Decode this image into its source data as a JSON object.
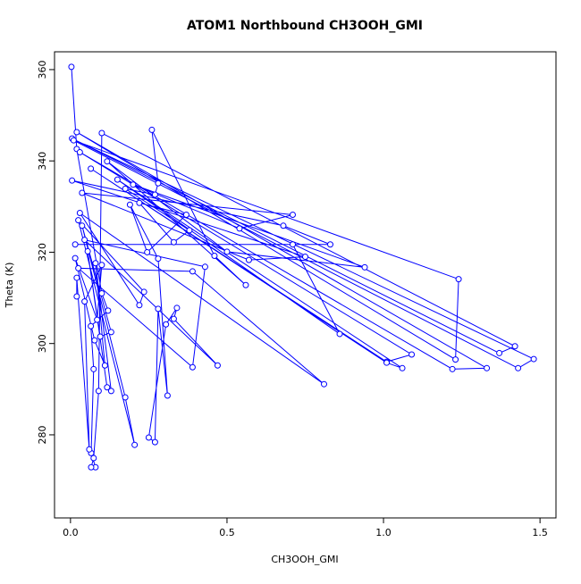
{
  "chart_data": {
    "type": "line-points",
    "title": "ATOM1 Northbound CH3OOH_GMI",
    "xlabel": "CH3OOH_GMI",
    "ylabel": "Theta (K)",
    "color": "#0000ff",
    "x": [
      0.003,
      0.02,
      0.1,
      0.12,
      0.065,
      0.074,
      0.066,
      0.08,
      0.066,
      0.074,
      0.09,
      0.1,
      1.42,
      1.37,
      0.005,
      1.48,
      1.43,
      0.01,
      1.24,
      1.23,
      0.02,
      1.33,
      1.22,
      0.03,
      1.09,
      1.01,
      0.065,
      1.01,
      1.06,
      0.15,
      0.86,
      0.71,
      0.015,
      0.83,
      0.68,
      0.005,
      0.75,
      0.57,
      0.037,
      0.71,
      0.54,
      0.2,
      0.94,
      0.5,
      0.117,
      0.56,
      0.46,
      0.26,
      0.28,
      0.27,
      0.175,
      0.38,
      0.33,
      0.22,
      0.37,
      0.245,
      0.19,
      0.28,
      0.31,
      0.28,
      0.27,
      0.25,
      0.305,
      0.34,
      0.33,
      0.47,
      0.045,
      0.43,
      0.39,
      0.025,
      0.39,
      0.81,
      0.03,
      0.22,
      0.235,
      0.025,
      0.205,
      0.175,
      0.037,
      0.13,
      0.095,
      0.055,
      0.117,
      0.13,
      0.08,
      0.11,
      0.077,
      0.015,
      0.085,
      0.1,
      0.045,
      0.06,
      0.02,
      0.02
    ],
    "values": [
      360.6,
      342.6,
      311,
      307.2,
      303.8,
      294.4,
      276,
      272.9,
      272.9,
      274.9,
      289.6,
      346.1,
      299.4,
      297.9,
      344.9,
      296.6,
      294.6,
      344.5,
      314.1,
      296.5,
      346.3,
      294.6,
      294.4,
      341.9,
      297.6,
      296,
      338.3,
      295.8,
      294.6,
      335.9,
      302.1,
      321.7,
      321.7,
      321.7,
      325.8,
      335.7,
      319,
      318.3,
      333,
      328.2,
      325.2,
      334.8,
      316.7,
      320.1,
      339.9,
      312.8,
      319.2,
      346.8,
      335.1,
      332.6,
      333.9,
      324.8,
      322.2,
      330.8,
      328.2,
      320,
      330.4,
      318.6,
      288.6,
      307.6,
      278.4,
      279.4,
      304.2,
      307.8,
      305.4,
      295.2,
      322.7,
      316.8,
      294.8,
      316.5,
      315.8,
      291.1,
      328.6,
      308.4,
      311.3,
      327,
      277.8,
      288.2,
      325.8,
      302.5,
      301.5,
      320.2,
      290.4,
      289.6,
      317.6,
      295.2,
      300.7,
      318.7,
      305.2,
      317.2,
      309.2,
      276.8,
      314.4,
      310.3
    ],
    "xlim": [
      -0.051,
      1.551
    ],
    "ylim": [
      261.8,
      363.9
    ],
    "xticks": [
      {
        "value": 0,
        "label": "0.0"
      },
      0.5,
      {
        "value": 1,
        "label": "1.0"
      },
      1.5
    ],
    "yticks": [
      280,
      300,
      320,
      340,
      360
    ]
  }
}
